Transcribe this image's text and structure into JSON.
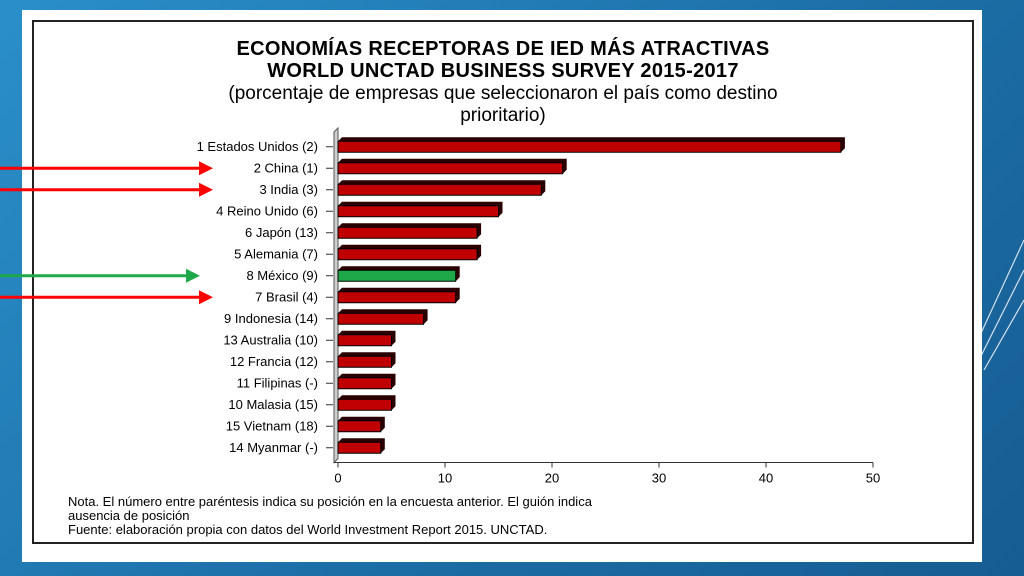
{
  "slide": {
    "background": "#1f78b5",
    "accent_lines": "#ffffff"
  },
  "chart_data": {
    "type": "bar",
    "orientation": "horizontal",
    "title": [
      "ECONOMÍAS RECEPTORAS DE IED MÁS ATRACTIVAS",
      "WORLD UNCTAD BUSINESS SURVEY 2015-2017"
    ],
    "subtitle": [
      "(porcentaje de empresas que seleccionaron el país como destino",
      "prioritario)"
    ],
    "categories": [
      "1 Estados Unidos (2)",
      "2 China (1)",
      "3 India (3)",
      "4 Reino Unido (6)",
      "6 Japón (13)",
      "5 Alemania (7)",
      "8 México (9)",
      "7 Brasil (4)",
      "9 Indonesia (14)",
      "13 Australia (10)",
      "12 Francia (12)",
      "11 Filipinas (-)",
      "10 Malasia (15)",
      "15 Vietnam (18)",
      "14 Myanmar (-)"
    ],
    "values": [
      47,
      21,
      19,
      15,
      13,
      13,
      11,
      11,
      8,
      5,
      5,
      5,
      5,
      4,
      4
    ],
    "xlim": [
      0,
      50
    ],
    "xticks": [
      "0",
      "10",
      "20",
      "30",
      "40",
      "50"
    ],
    "grid": false,
    "colors": {
      "bar": "#c00000",
      "bar_shadow": "#2a0000",
      "highlight_bar": "#1fa84a",
      "red_arrow": "#ff0000",
      "green_arrow": "#1fa84a"
    },
    "highlighted": [
      "8 México (9)"
    ],
    "arrows": [
      {
        "target": "2 China (1)",
        "color": "red"
      },
      {
        "target": "3 India (3)",
        "color": "red"
      },
      {
        "target": "8 México (9)",
        "color": "green"
      },
      {
        "target": "7 Brasil (4)",
        "color": "red"
      }
    ],
    "notes": [
      "Nota. El número entre paréntesis indica su posición en la encuesta anterior. El guión indica",
      "ausencia de posición",
      "Fuente: elaboración propia con datos del World Investment Report 2015. UNCTAD."
    ]
  }
}
